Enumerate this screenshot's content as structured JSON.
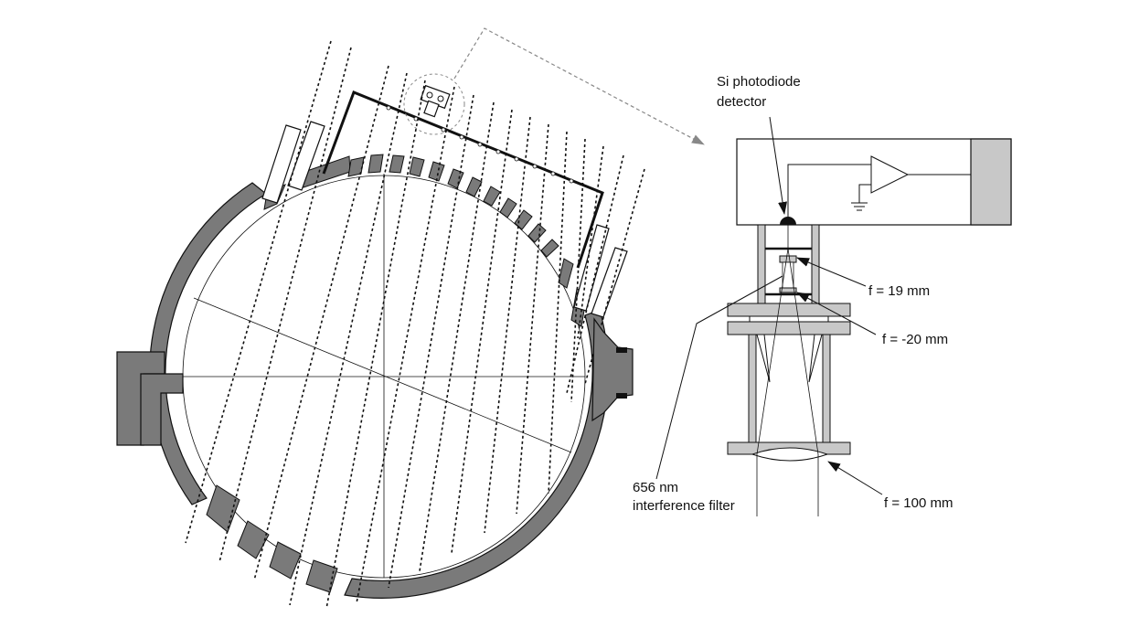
{
  "labels": {
    "detector_line1": "Si photodiode",
    "detector_line2": "detector",
    "focal_19": "f = 19 mm",
    "focal_neg20": "f = -20 mm",
    "filter_line1": "656 nm",
    "filter_line2": "interference filter",
    "focal_100": "f = 100 mm"
  },
  "colors": {
    "vessel_fill": "#7a7a7a",
    "detector_fill": "#c8c8c8",
    "stroke": "#111111",
    "guide_arrow": "#888888"
  },
  "sightlines": {
    "count": 15
  }
}
